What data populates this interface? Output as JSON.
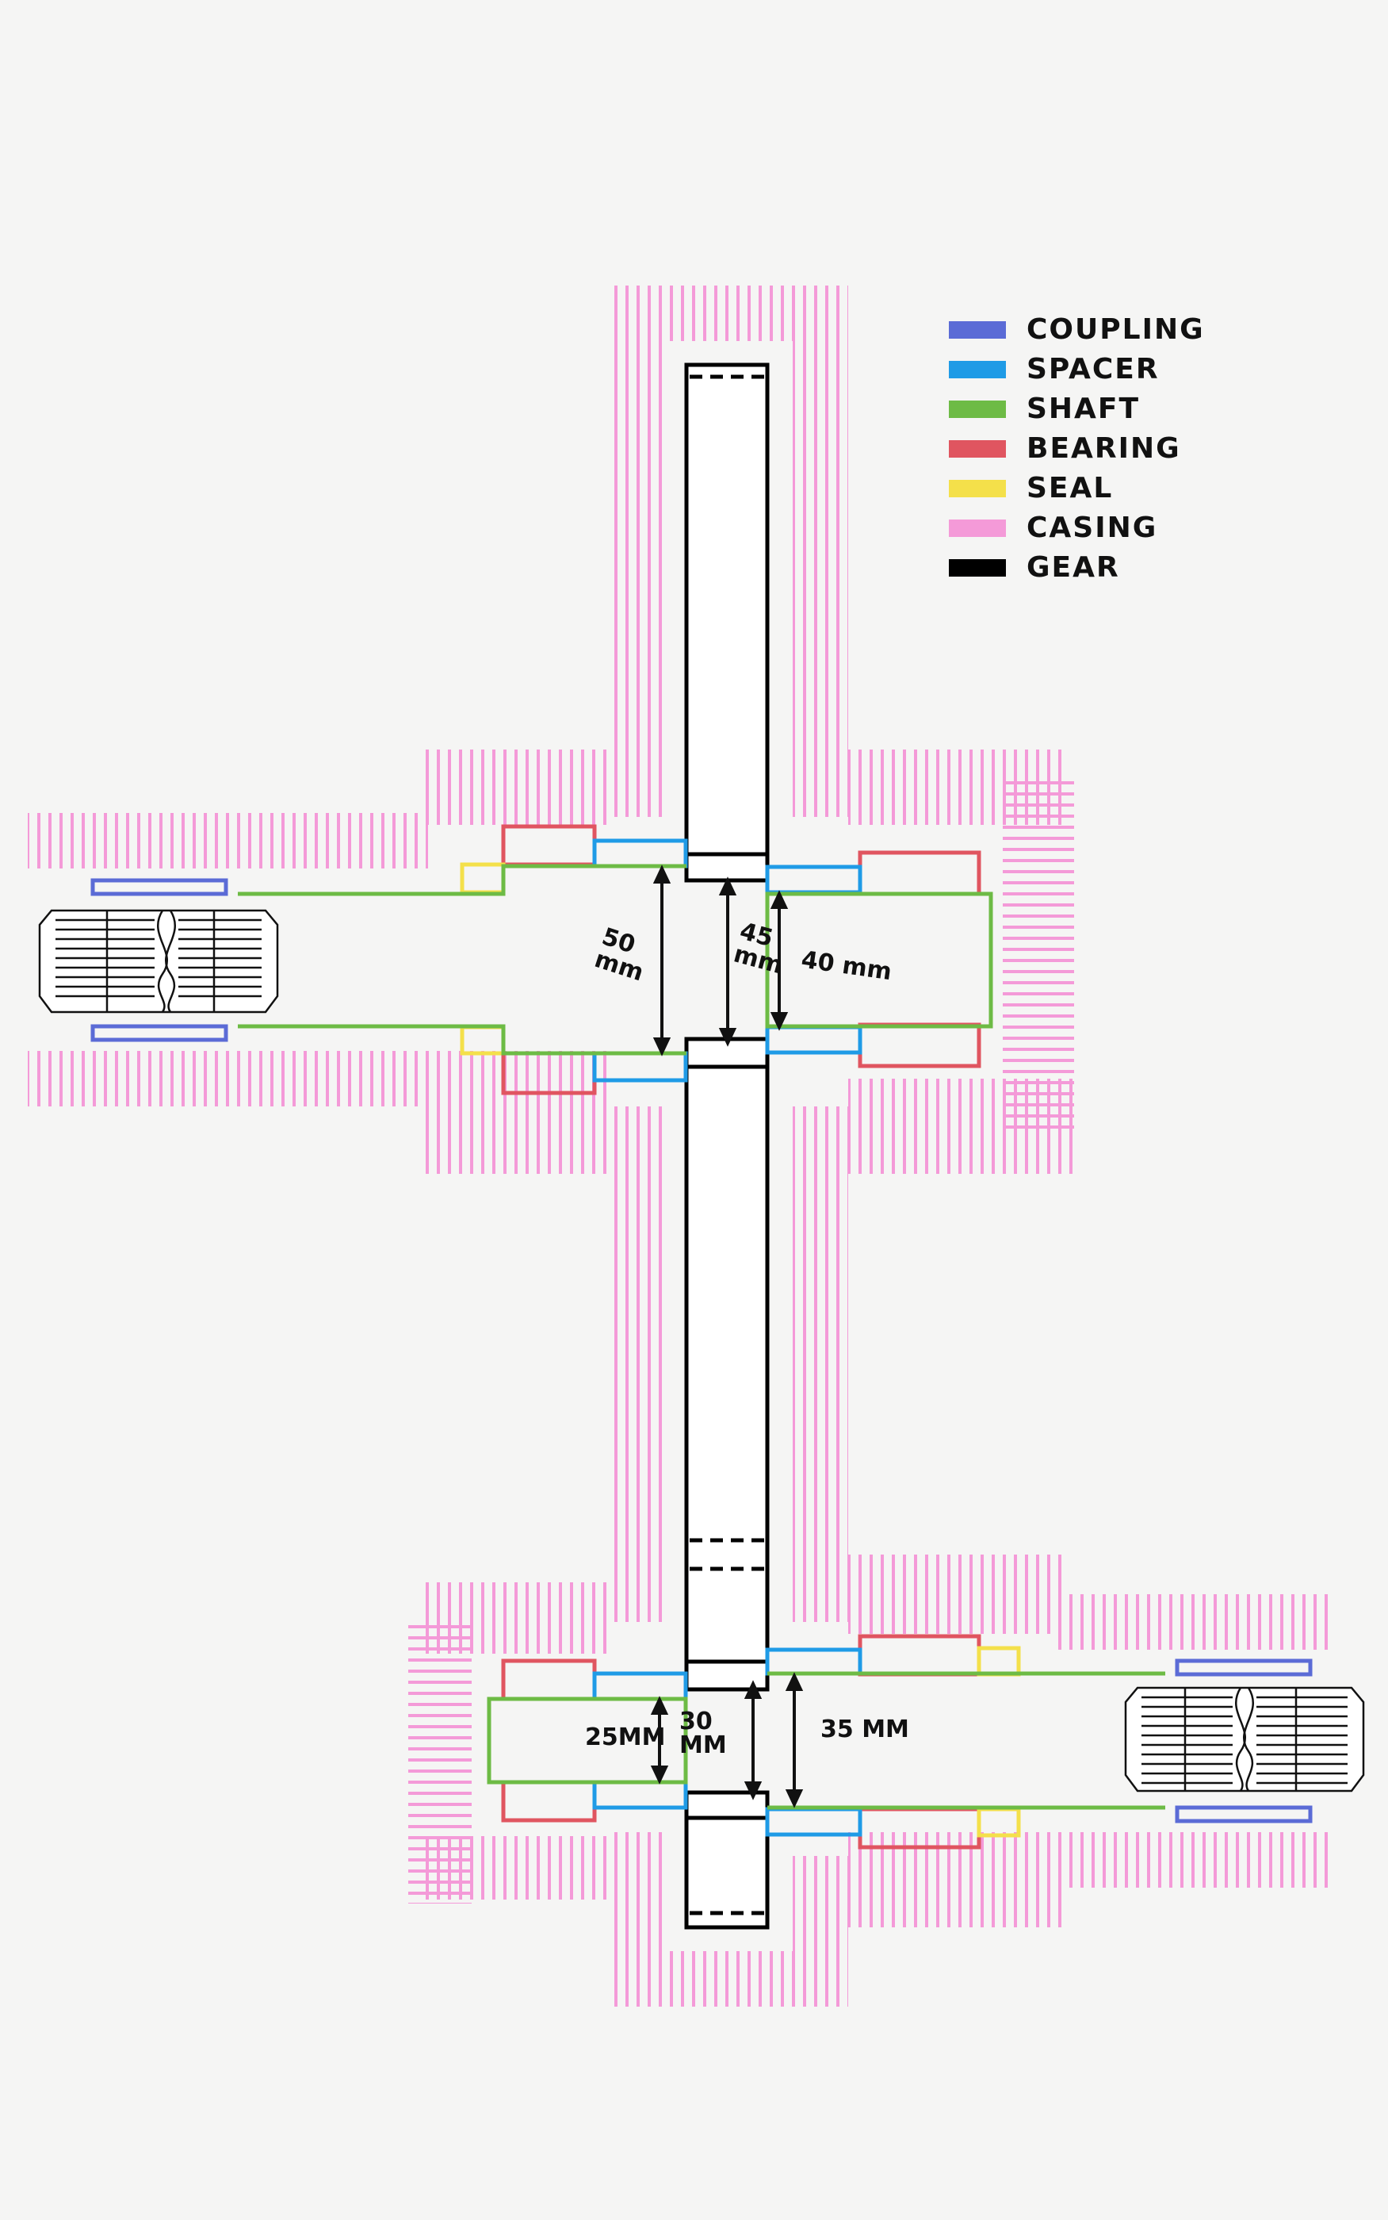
{
  "legend": {
    "items": [
      {
        "label": "COUPLING",
        "color": "#5b6bd6"
      },
      {
        "label": "SPACER",
        "color": "#1f9be6"
      },
      {
        "label": "SHAFT",
        "color": "#6dbb45"
      },
      {
        "label": "BEARING",
        "color": "#e05560"
      },
      {
        "label": "SEAL",
        "color": "#f4e04a"
      },
      {
        "label": "CASING",
        "color": "#f49ad8"
      },
      {
        "label": "GEAR",
        "color": "#000000"
      }
    ]
  },
  "dimensions": {
    "top_left": "50\nmm",
    "top_mid": "45\nmm",
    "top_right": "40 mm",
    "bottom_left": "25MM",
    "bottom_mid": "30\nMM",
    "bottom_right": "35 MM"
  },
  "colors": {
    "coupling": "#5b6bd6",
    "spacer": "#1f9be6",
    "shaft": "#6dbb45",
    "bearing": "#e05560",
    "seal": "#f4e04a",
    "casing": "#f49ad8",
    "gear": "#000000"
  }
}
